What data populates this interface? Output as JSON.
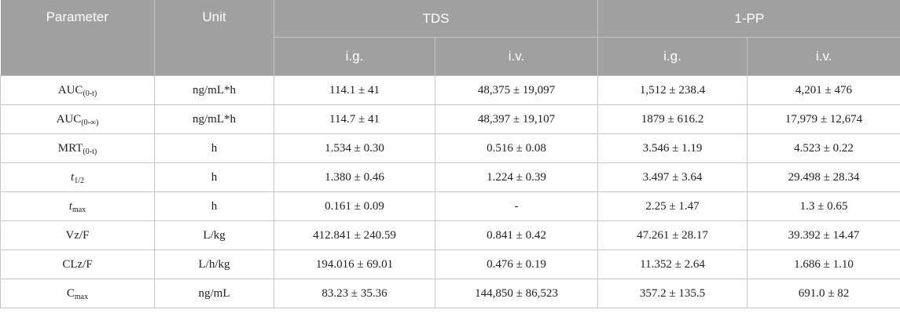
{
  "header": {
    "parameter": "Parameter",
    "unit": "Unit",
    "group_tds": "TDS",
    "group_1pp": "1-PP",
    "ig": "i.g.",
    "iv": "i.v."
  },
  "rows": [
    {
      "param_main": "AUC",
      "param_sub": "(0-t)",
      "unit": "ng/mL*h",
      "tds_ig": "114.1 ± 41",
      "tds_iv": "48,375 ± 19,097",
      "pp_ig": "1,512 ± 238.4",
      "pp_iv": "4,201 ± 476"
    },
    {
      "param_main": "AUC",
      "param_sub": "(0-∞)",
      "unit": "ng/mL*h",
      "tds_ig": "114.7 ± 41",
      "tds_iv": "48,397 ± 19,107",
      "pp_ig": "1879 ± 616.2",
      "pp_iv": "17,979 ± 12,674"
    },
    {
      "param_main": "MRT",
      "param_sub": "(0-t)",
      "unit": "h",
      "tds_ig": "1.534 ± 0.30",
      "tds_iv": "0.516 ± 0.08",
      "pp_ig": "3.546 ± 1.19",
      "pp_iv": "4.523 ± 0.22"
    },
    {
      "param_main": "t",
      "param_sub": "1/2",
      "unit": "h",
      "tds_ig": "1.380 ± 0.46",
      "tds_iv": "1.224 ± 0.39",
      "pp_ig": "3.497 ± 3.64",
      "pp_iv": "29.498 ± 28.34"
    },
    {
      "param_main": "t",
      "param_sub": "max",
      "unit": "h",
      "tds_ig": "0.161 ± 0.09",
      "tds_iv": "-",
      "pp_ig": "2.25 ± 1.47",
      "pp_iv": "1.3 ± 0.65"
    },
    {
      "param_main": "Vz/F",
      "param_sub": "",
      "unit": "L/kg",
      "tds_ig": "412.841 ± 240.59",
      "tds_iv": "0.841 ± 0.42",
      "pp_ig": "47.261 ± 28.17",
      "pp_iv": "39.392 ± 14.47"
    },
    {
      "param_main": "CLz/F",
      "param_sub": "",
      "unit": "L/h/kg",
      "tds_ig": "194.016 ± 69.01",
      "tds_iv": "0.476 ± 0.19",
      "pp_ig": "11.352 ± 2.64",
      "pp_iv": "1.686 ± 1.10"
    },
    {
      "param_main": "C",
      "param_sub": "max",
      "unit": "ng/mL",
      "tds_ig": "83.23 ± 35.36",
      "tds_iv": "144,850 ± 86,523",
      "pp_ig": "357.2 ± 135.5",
      "pp_iv": "691.0 ± 82"
    }
  ]
}
